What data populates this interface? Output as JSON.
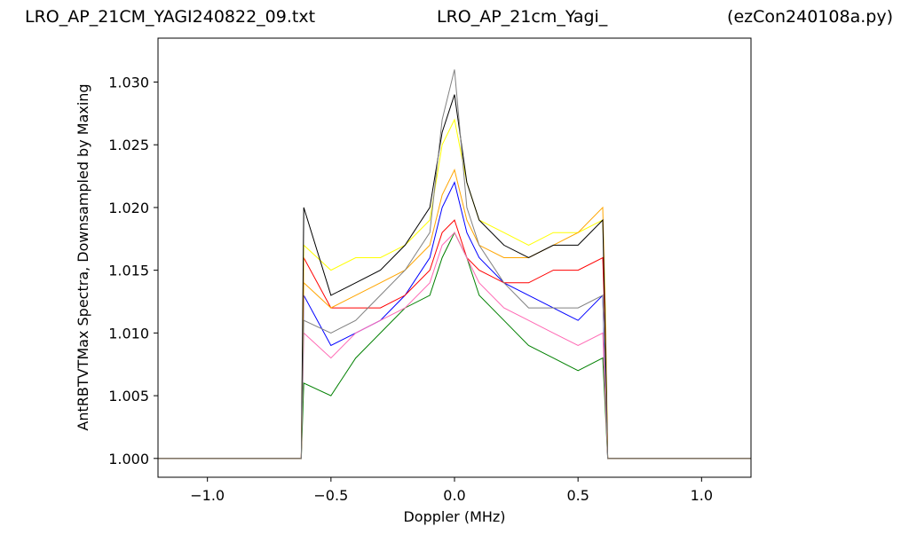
{
  "header": {
    "left": "LRO_AP_21CM_YAGI240822_09.txt",
    "center": "LRO_AP_21cm_Yagi_",
    "right": "(ezCon240108a.py)"
  },
  "chart_data": {
    "type": "line",
    "title": "",
    "xlabel": "Doppler (MHz)",
    "ylabel": "AntRBTVTMax Spectra, Downsampled by Maxing",
    "xlim": [
      -1.2,
      1.2
    ],
    "ylim": [
      0.9985,
      1.0335
    ],
    "xticks": [
      -1.0,
      -0.5,
      0.0,
      0.5,
      1.0
    ],
    "xtick_labels": [
      "−1.0",
      "−0.5",
      "0.0",
      "0.5",
      "1.0"
    ],
    "yticks": [
      1.0,
      1.005,
      1.01,
      1.015,
      1.02,
      1.025,
      1.03
    ],
    "ytick_labels": [
      "1.000",
      "1.005",
      "1.010",
      "1.015",
      "1.020",
      "1.025",
      "1.030"
    ],
    "grid": false,
    "legend": "none",
    "series_colors": [
      "#0000ff",
      "#ff0000",
      "#008000",
      "#ffff00",
      "#ff69b4",
      "#ffa500",
      "#000000",
      "#808080"
    ],
    "series": [
      {
        "x": [
          -1.2,
          -0.62,
          -0.61,
          -0.5,
          -0.4,
          -0.3,
          -0.2,
          -0.1,
          -0.05,
          0.0,
          0.05,
          0.1,
          0.2,
          0.3,
          0.4,
          0.5,
          0.6,
          0.61,
          0.62,
          1.2
        ],
        "y": [
          1.0,
          1.0,
          1.013,
          1.009,
          1.01,
          1.011,
          1.013,
          1.016,
          1.02,
          1.022,
          1.018,
          1.016,
          1.014,
          1.013,
          1.012,
          1.011,
          1.013,
          1.006,
          1.0,
          1.0
        ]
      },
      {
        "x": [
          -1.2,
          -0.62,
          -0.61,
          -0.5,
          -0.4,
          -0.3,
          -0.2,
          -0.1,
          -0.05,
          0.0,
          0.05,
          0.1,
          0.2,
          0.3,
          0.4,
          0.5,
          0.6,
          0.61,
          0.62,
          1.2
        ],
        "y": [
          1.0,
          1.0,
          1.016,
          1.012,
          1.012,
          1.012,
          1.013,
          1.015,
          1.018,
          1.019,
          1.016,
          1.015,
          1.014,
          1.014,
          1.015,
          1.015,
          1.016,
          1.01,
          1.0,
          1.0
        ]
      },
      {
        "x": [
          -1.2,
          -0.62,
          -0.61,
          -0.5,
          -0.4,
          -0.3,
          -0.2,
          -0.1,
          -0.05,
          0.0,
          0.05,
          0.1,
          0.2,
          0.3,
          0.4,
          0.5,
          0.6,
          0.61,
          0.62,
          1.2
        ],
        "y": [
          1.0,
          1.0,
          1.006,
          1.005,
          1.008,
          1.01,
          1.012,
          1.013,
          1.016,
          1.018,
          1.016,
          1.013,
          1.011,
          1.009,
          1.008,
          1.007,
          1.008,
          1.004,
          1.0,
          1.0
        ]
      },
      {
        "x": [
          -1.2,
          -0.62,
          -0.61,
          -0.5,
          -0.4,
          -0.3,
          -0.2,
          -0.1,
          -0.05,
          0.0,
          0.05,
          0.1,
          0.2,
          0.3,
          0.4,
          0.5,
          0.6,
          0.61,
          0.62,
          1.2
        ],
        "y": [
          1.0,
          1.0,
          1.017,
          1.015,
          1.016,
          1.016,
          1.017,
          1.019,
          1.025,
          1.027,
          1.022,
          1.019,
          1.018,
          1.017,
          1.018,
          1.018,
          1.019,
          1.012,
          1.0,
          1.0
        ]
      },
      {
        "x": [
          -1.2,
          -0.62,
          -0.61,
          -0.5,
          -0.4,
          -0.3,
          -0.2,
          -0.1,
          -0.05,
          0.0,
          0.05,
          0.1,
          0.2,
          0.3,
          0.4,
          0.5,
          0.6,
          0.61,
          0.62,
          1.2
        ],
        "y": [
          1.0,
          1.0,
          1.01,
          1.008,
          1.01,
          1.011,
          1.012,
          1.014,
          1.017,
          1.018,
          1.016,
          1.014,
          1.012,
          1.011,
          1.01,
          1.009,
          1.01,
          1.005,
          1.0,
          1.0
        ]
      },
      {
        "x": [
          -1.2,
          -0.62,
          -0.61,
          -0.5,
          -0.4,
          -0.3,
          -0.2,
          -0.1,
          -0.05,
          0.0,
          0.05,
          0.1,
          0.2,
          0.3,
          0.4,
          0.5,
          0.6,
          0.61,
          0.62,
          1.2
        ],
        "y": [
          1.0,
          1.0,
          1.014,
          1.012,
          1.013,
          1.014,
          1.015,
          1.017,
          1.021,
          1.023,
          1.019,
          1.017,
          1.016,
          1.016,
          1.017,
          1.018,
          1.02,
          1.012,
          1.0,
          1.0
        ]
      },
      {
        "x": [
          -1.2,
          -0.62,
          -0.61,
          -0.5,
          -0.4,
          -0.3,
          -0.2,
          -0.1,
          -0.05,
          0.0,
          0.05,
          0.1,
          0.2,
          0.3,
          0.4,
          0.5,
          0.6,
          0.61,
          0.62,
          1.2
        ],
        "y": [
          1.0,
          1.0,
          1.02,
          1.013,
          1.014,
          1.015,
          1.017,
          1.02,
          1.026,
          1.029,
          1.022,
          1.019,
          1.017,
          1.016,
          1.017,
          1.017,
          1.019,
          1.01,
          1.0,
          1.0
        ]
      },
      {
        "x": [
          -1.2,
          -0.62,
          -0.61,
          -0.5,
          -0.4,
          -0.3,
          -0.2,
          -0.1,
          -0.05,
          0.0,
          0.05,
          0.1,
          0.2,
          0.3,
          0.4,
          0.5,
          0.6,
          0.61,
          0.62,
          1.2
        ],
        "y": [
          1.0,
          1.0,
          1.011,
          1.01,
          1.011,
          1.013,
          1.015,
          1.018,
          1.027,
          1.031,
          1.02,
          1.017,
          1.014,
          1.012,
          1.012,
          1.012,
          1.013,
          1.007,
          1.0,
          1.0
        ]
      }
    ]
  }
}
